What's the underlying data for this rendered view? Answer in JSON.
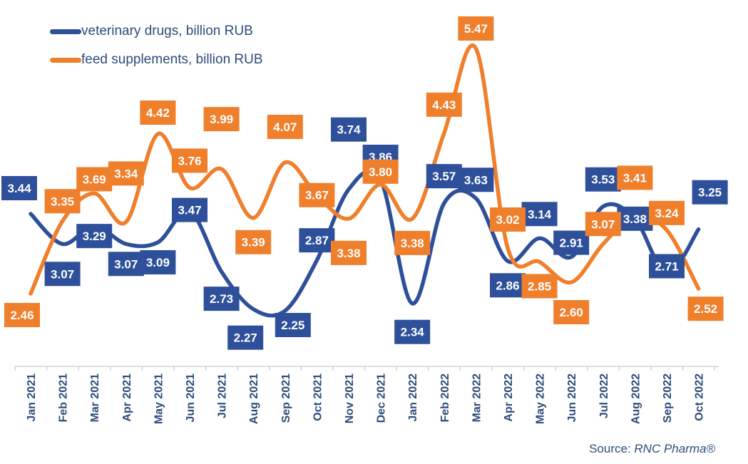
{
  "chart_data": {
    "type": "line",
    "categories": [
      "Jan 2021",
      "Feb 2021",
      "Mar 2021",
      "Apr 2021",
      "May 2021",
      "Jun 2021",
      "Jul 2021",
      "Aug 2021",
      "Sep 2021",
      "Oct 2021",
      "Nov 2021",
      "Dec 2021",
      "Jan 2022",
      "Feb 2022",
      "Mar 2022",
      "Apr 2022",
      "May 2022",
      "Jun 2022",
      "Jul 2022",
      "Aug 2022",
      "Sep 2022",
      "Oct 2022"
    ],
    "series": [
      {
        "name": "veterinary drugs, billion RUB",
        "color": "#2e509a",
        "values": [
          3.44,
          3.07,
          3.29,
          3.07,
          3.09,
          3.47,
          2.73,
          2.27,
          2.25,
          2.87,
          3.74,
          3.86,
          2.34,
          3.57,
          3.63,
          2.86,
          3.14,
          2.91,
          3.53,
          3.38,
          2.71,
          3.25
        ],
        "labels": [
          "3.44",
          "3.07",
          "3.29",
          "3.07",
          "3.09",
          "3.47",
          "2.73",
          "2.27",
          "2.25",
          "2.87",
          "3.74",
          "3.86",
          "2.34",
          "3.57",
          "3.63",
          "2.86",
          "3.14",
          "2.91",
          "3.53",
          "3.38",
          "2.71",
          "3.25"
        ]
      },
      {
        "name": "feed supplements, billion RUB",
        "color": "#f07f2c",
        "values": [
          2.46,
          3.35,
          3.69,
          3.34,
          4.42,
          3.76,
          3.99,
          3.39,
          4.07,
          3.67,
          3.38,
          3.8,
          3.38,
          4.43,
          5.47,
          3.02,
          2.85,
          2.6,
          3.07,
          3.41,
          3.24,
          2.52
        ],
        "labels": [
          "2.46",
          "3.35",
          "3.69",
          "3.34",
          "4.42",
          "3.76",
          "3.99",
          "3.39",
          "4.07",
          "3.67",
          "3.38",
          "3.80",
          "3.38",
          "4.43",
          "5.47",
          "3.02",
          "2.85",
          "2.60",
          "3.07",
          "3.41",
          "3.24",
          "2.52"
        ]
      }
    ],
    "ylim": [
      1.5,
      6.0
    ],
    "grid": false,
    "legend_position": "top-left"
  },
  "source_prefix": "Source: ",
  "source_name": "RNC Pharma®"
}
